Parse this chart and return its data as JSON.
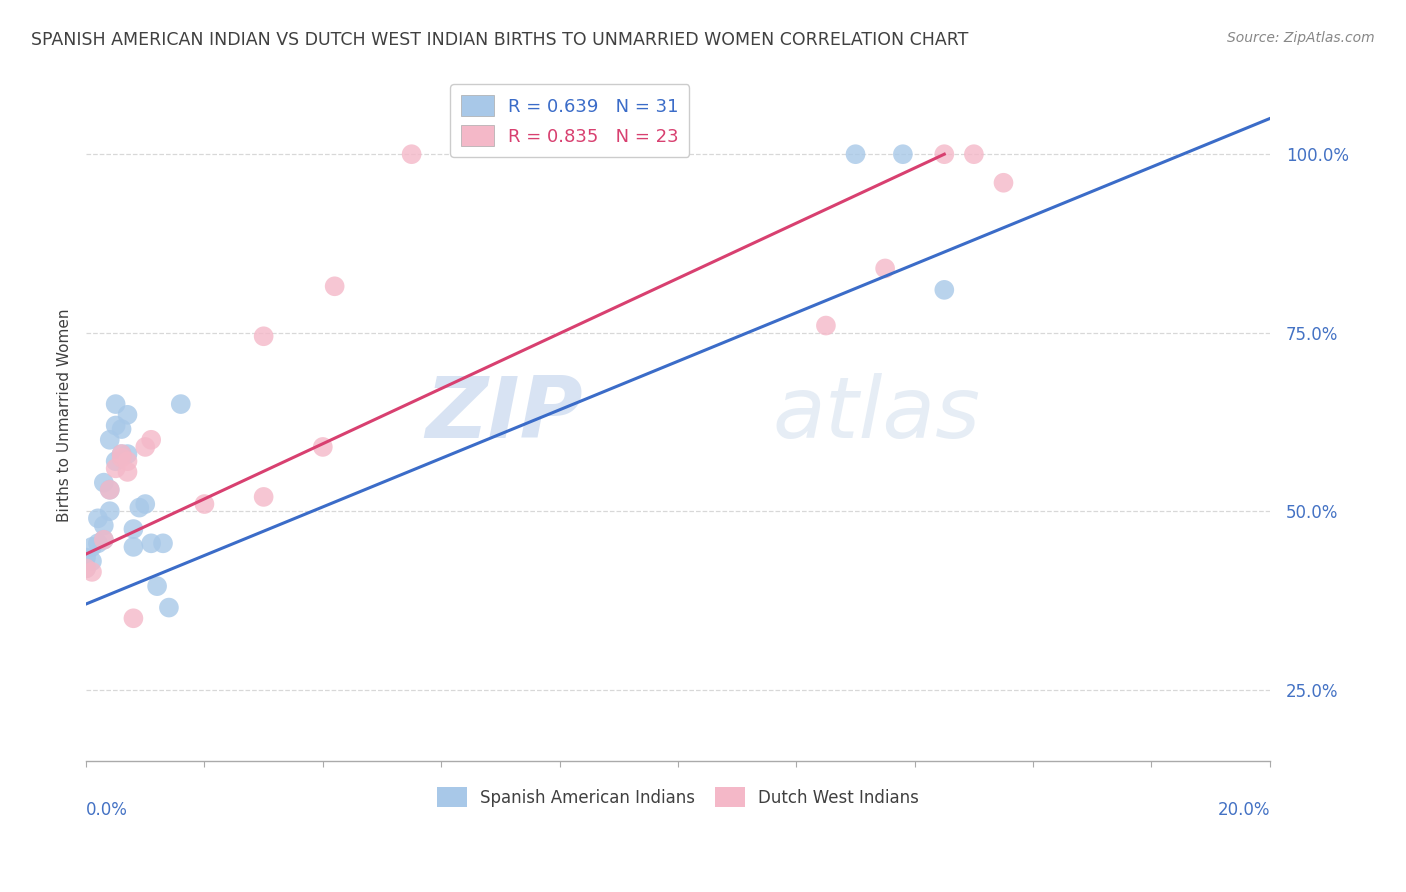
{
  "title": "SPANISH AMERICAN INDIAN VS DUTCH WEST INDIAN BIRTHS TO UNMARRIED WOMEN CORRELATION CHART",
  "source": "Source: ZipAtlas.com",
  "ylabel": "Births to Unmarried Women",
  "yaxis_labels": [
    "25.0%",
    "50.0%",
    "75.0%",
    "100.0%"
  ],
  "legend_blue": "R = 0.639   N = 31",
  "legend_pink": "R = 0.835   N = 23",
  "legend_label_blue": "Spanish American Indians",
  "legend_label_pink": "Dutch West Indians",
  "watermark_zip": "ZIP",
  "watermark_atlas": "atlas",
  "blue_scatter_x": [
    0.0,
    0.0,
    0.001,
    0.001,
    0.002,
    0.002,
    0.003,
    0.003,
    0.003,
    0.004,
    0.004,
    0.004,
    0.005,
    0.005,
    0.005,
    0.006,
    0.006,
    0.007,
    0.007,
    0.008,
    0.008,
    0.009,
    0.01,
    0.011,
    0.012,
    0.013,
    0.014,
    0.016,
    0.13,
    0.138,
    0.145
  ],
  "blue_scatter_y": [
    0.42,
    0.435,
    0.43,
    0.45,
    0.455,
    0.49,
    0.46,
    0.48,
    0.54,
    0.5,
    0.53,
    0.6,
    0.57,
    0.62,
    0.65,
    0.58,
    0.615,
    0.58,
    0.635,
    0.45,
    0.475,
    0.505,
    0.51,
    0.455,
    0.395,
    0.455,
    0.365,
    0.65,
    1.0,
    1.0,
    0.81
  ],
  "pink_scatter_x": [
    0.0,
    0.001,
    0.003,
    0.004,
    0.005,
    0.006,
    0.006,
    0.007,
    0.007,
    0.008,
    0.01,
    0.011,
    0.02,
    0.03,
    0.03,
    0.04,
    0.042,
    0.055,
    0.125,
    0.135,
    0.145,
    0.15,
    0.155
  ],
  "pink_scatter_y": [
    0.42,
    0.415,
    0.46,
    0.53,
    0.56,
    0.575,
    0.58,
    0.57,
    0.555,
    0.35,
    0.59,
    0.6,
    0.51,
    0.52,
    0.745,
    0.59,
    0.815,
    1.0,
    0.76,
    0.84,
    1.0,
    1.0,
    0.96
  ],
  "blue_line_x": [
    0.0,
    0.2
  ],
  "blue_line_y": [
    0.37,
    1.05
  ],
  "pink_line_x": [
    0.0,
    0.145
  ],
  "pink_line_y": [
    0.44,
    1.0
  ],
  "xlim": [
    0.0,
    0.2
  ],
  "ylim": [
    0.15,
    1.12
  ],
  "blue_color": "#A8C8E8",
  "pink_color": "#F4B8C8",
  "blue_line_color": "#3B6CC8",
  "pink_line_color": "#D84070",
  "background_color": "#ffffff",
  "grid_color": "#d8d8d8",
  "title_color": "#404040",
  "axis_label_color": "#4472C4",
  "source_color": "#888888"
}
